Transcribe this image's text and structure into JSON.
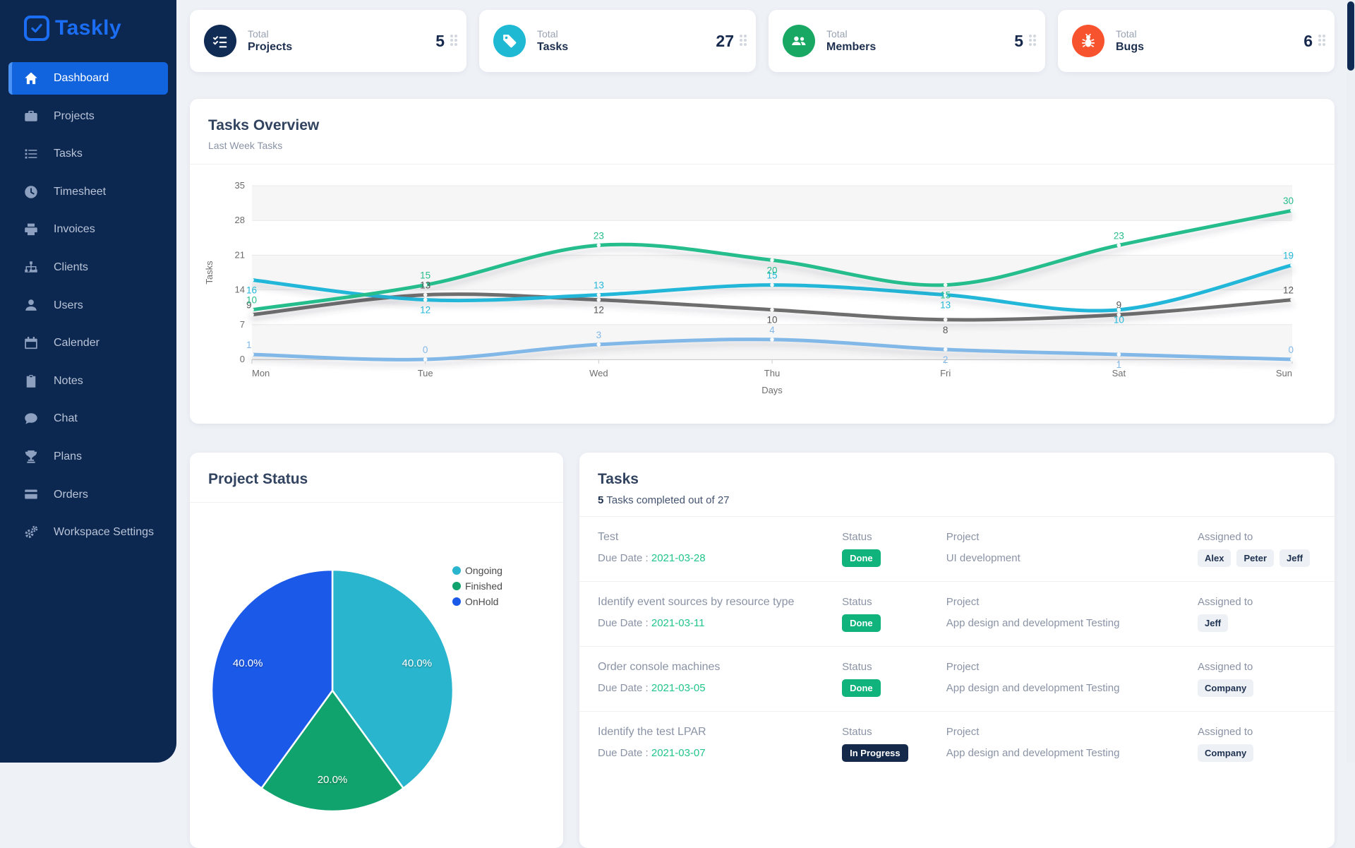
{
  "app": {
    "name": "Taskly"
  },
  "sidebar": {
    "items": [
      {
        "label": "Dashboard",
        "icon": "home",
        "active": true
      },
      {
        "label": "Projects",
        "icon": "briefcase",
        "active": false
      },
      {
        "label": "Tasks",
        "icon": "list",
        "active": false
      },
      {
        "label": "Timesheet",
        "icon": "clock",
        "active": false
      },
      {
        "label": "Invoices",
        "icon": "printer",
        "active": false
      },
      {
        "label": "Clients",
        "icon": "sitemap",
        "active": false
      },
      {
        "label": "Users",
        "icon": "user",
        "active": false
      },
      {
        "label": "Calender",
        "icon": "calendar",
        "active": false
      },
      {
        "label": "Notes",
        "icon": "clipboard",
        "active": false
      },
      {
        "label": "Chat",
        "icon": "chat",
        "active": false
      },
      {
        "label": "Plans",
        "icon": "trophy",
        "active": false
      },
      {
        "label": "Orders",
        "icon": "credit-card",
        "active": false
      },
      {
        "label": "Workspace Settings",
        "icon": "gears",
        "active": false
      }
    ]
  },
  "stats": {
    "cards": [
      {
        "prefix": "Total",
        "label": "Projects",
        "value": "5",
        "icon": "list-check",
        "color": "#102c55"
      },
      {
        "prefix": "Total",
        "label": "Tasks",
        "value": "27",
        "icon": "tag",
        "color": "#1fb9d3"
      },
      {
        "prefix": "Total",
        "label": "Members",
        "value": "5",
        "icon": "users",
        "color": "#18a864"
      },
      {
        "prefix": "Total",
        "label": "Bugs",
        "value": "6",
        "icon": "bug",
        "color": "#f8532f"
      }
    ]
  },
  "overview": {
    "title": "Tasks Overview",
    "subtitle": "Last Week Tasks"
  },
  "chart_data": [
    {
      "type": "line",
      "title": "Tasks Overview",
      "categories": [
        "Mon",
        "Tue",
        "Wed",
        "Thu",
        "Fri",
        "Sat",
        "Sun"
      ],
      "xlabel": "Days",
      "ylabel": "Tasks",
      "ylim": [
        0,
        35
      ],
      "yticks": [
        0,
        7,
        14,
        21,
        28,
        35
      ],
      "grid": true,
      "series": [
        {
          "name": "gray",
          "color": "#6e6e6e",
          "label_color": "#555555",
          "values": [
            9,
            13,
            12,
            10,
            8,
            9,
            12
          ],
          "label_dy": [
            -1,
            -1,
            1,
            1,
            1,
            -1,
            -1
          ]
        },
        {
          "name": "cyan",
          "color": "#23b7d9",
          "label_color": "#23b7d9",
          "values": [
            16,
            12,
            13,
            15,
            13,
            10,
            19
          ],
          "label_dy": [
            1,
            1,
            -1,
            -1,
            1,
            1,
            -1
          ]
        },
        {
          "name": "green",
          "color": "#26bd8c",
          "label_color": "#26bd8c",
          "values": [
            10,
            15,
            23,
            20,
            15,
            23,
            30
          ],
          "label_dy": [
            -1,
            -1,
            -1,
            1,
            1,
            -1,
            -1
          ]
        },
        {
          "name": "lightblue",
          "color": "#82b8e8",
          "label_color": "#82b8e8",
          "values": [
            1,
            0,
            3,
            4,
            2,
            1,
            0
          ],
          "label_dy": [
            -1,
            -1,
            -1,
            -1,
            1,
            1,
            -1
          ]
        }
      ]
    },
    {
      "type": "pie",
      "title": "Project Status",
      "labels": [
        "Ongoing",
        "Finished",
        "OnHold"
      ],
      "values": [
        40,
        20,
        40
      ],
      "slice_labels": [
        "40.0%",
        "20.0%",
        "40.0%"
      ],
      "colors": [
        "#29b5cd",
        "#11a36d",
        "#1b59e8"
      ],
      "legend_position": "top-right"
    }
  ],
  "project_status": {
    "title": "Project Status"
  },
  "tasks_panel": {
    "title": "Tasks",
    "summary_count": "5",
    "summary_rest": " Tasks completed out of 27",
    "labels": {
      "due": "Due Date : ",
      "status": "Status",
      "project": "Project",
      "assigned": "Assigned to"
    },
    "rows": [
      {
        "name": "Test",
        "due": "2021-03-28",
        "status": "Done",
        "status_type": "done",
        "project": "UI development",
        "assigned": [
          "Alex",
          "Peter",
          "Jeff"
        ]
      },
      {
        "name": "Identify event sources by resource type",
        "due": "2021-03-11",
        "status": "Done",
        "status_type": "done",
        "project": "App design and development Testing",
        "assigned": [
          "Jeff"
        ]
      },
      {
        "name": "Order console machines",
        "due": "2021-03-05",
        "status": "Done",
        "status_type": "done",
        "project": "App design and development Testing",
        "assigned": [
          "Company"
        ]
      },
      {
        "name": "Identify the test LPAR",
        "due": "2021-03-07",
        "status": "In Progress",
        "status_type": "progress",
        "project": "App design and development Testing",
        "assigned": [
          "Company"
        ]
      }
    ]
  }
}
